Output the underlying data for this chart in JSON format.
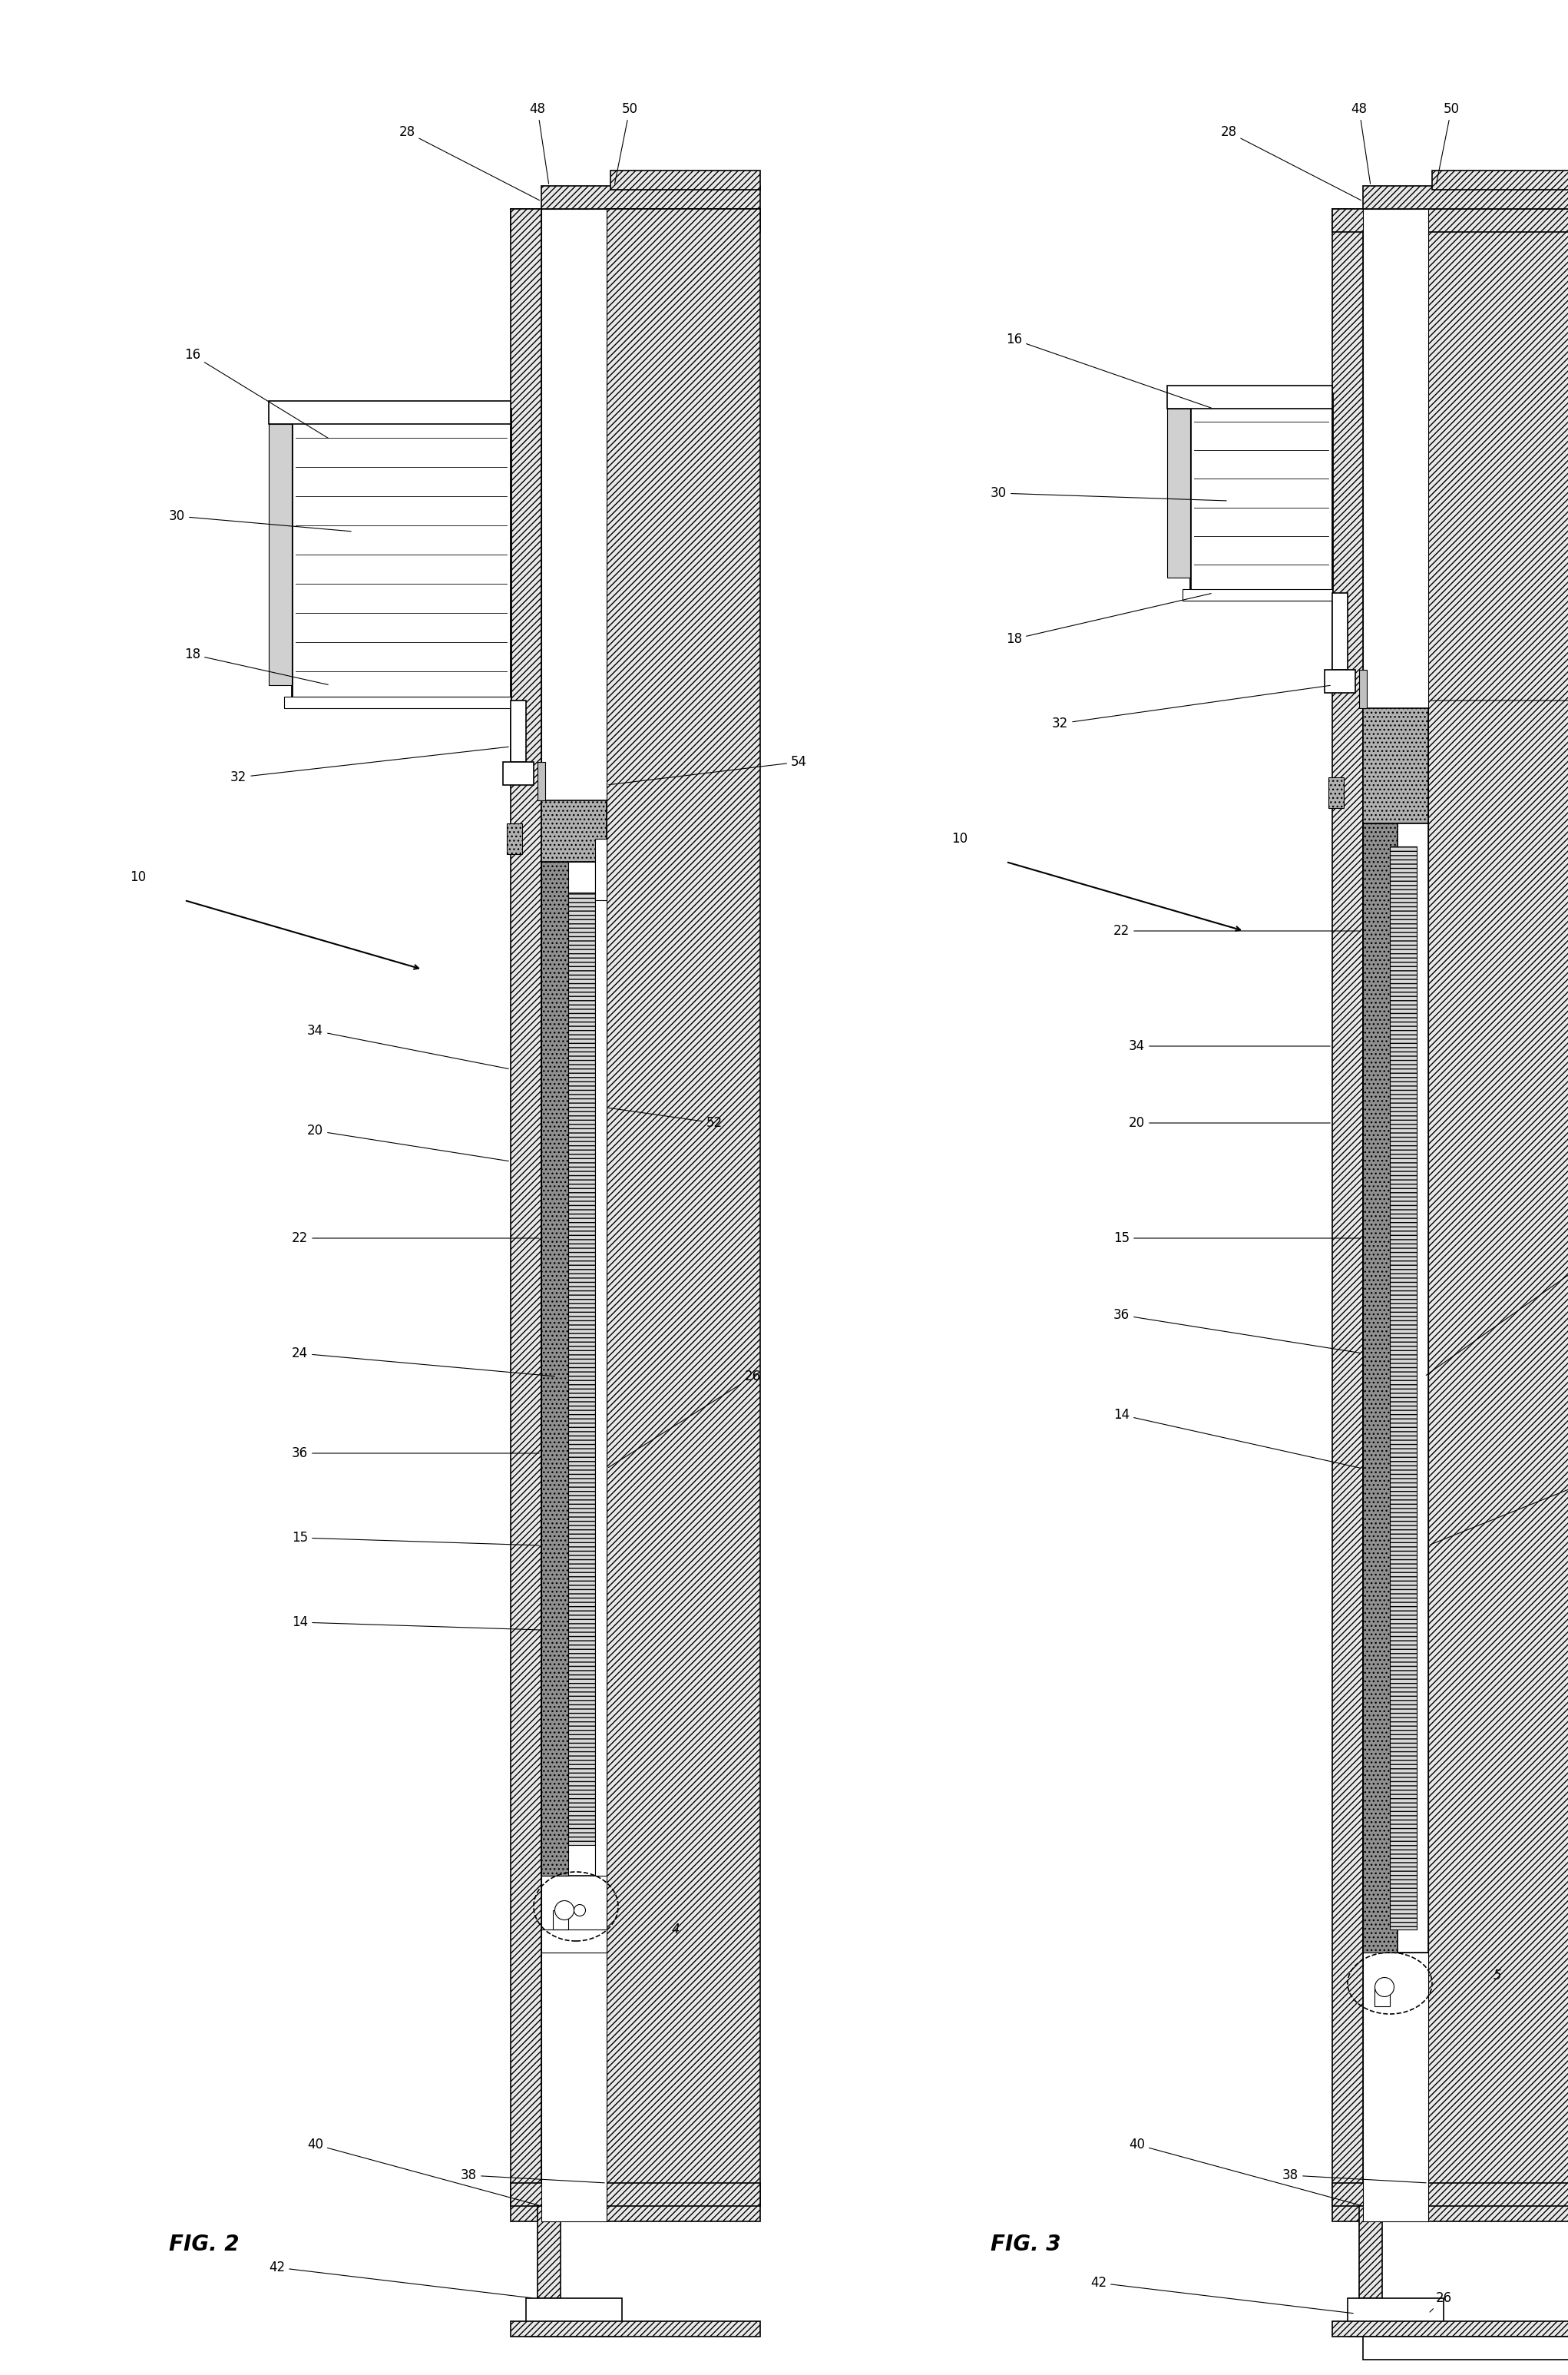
{
  "fig_width": 20.42,
  "fig_height": 30.92,
  "bg_color": "#ffffff",
  "fig2_label": "FIG. 2",
  "fig3_label": "FIG. 3",
  "font_size": 12,
  "fig_label_size": 20
}
